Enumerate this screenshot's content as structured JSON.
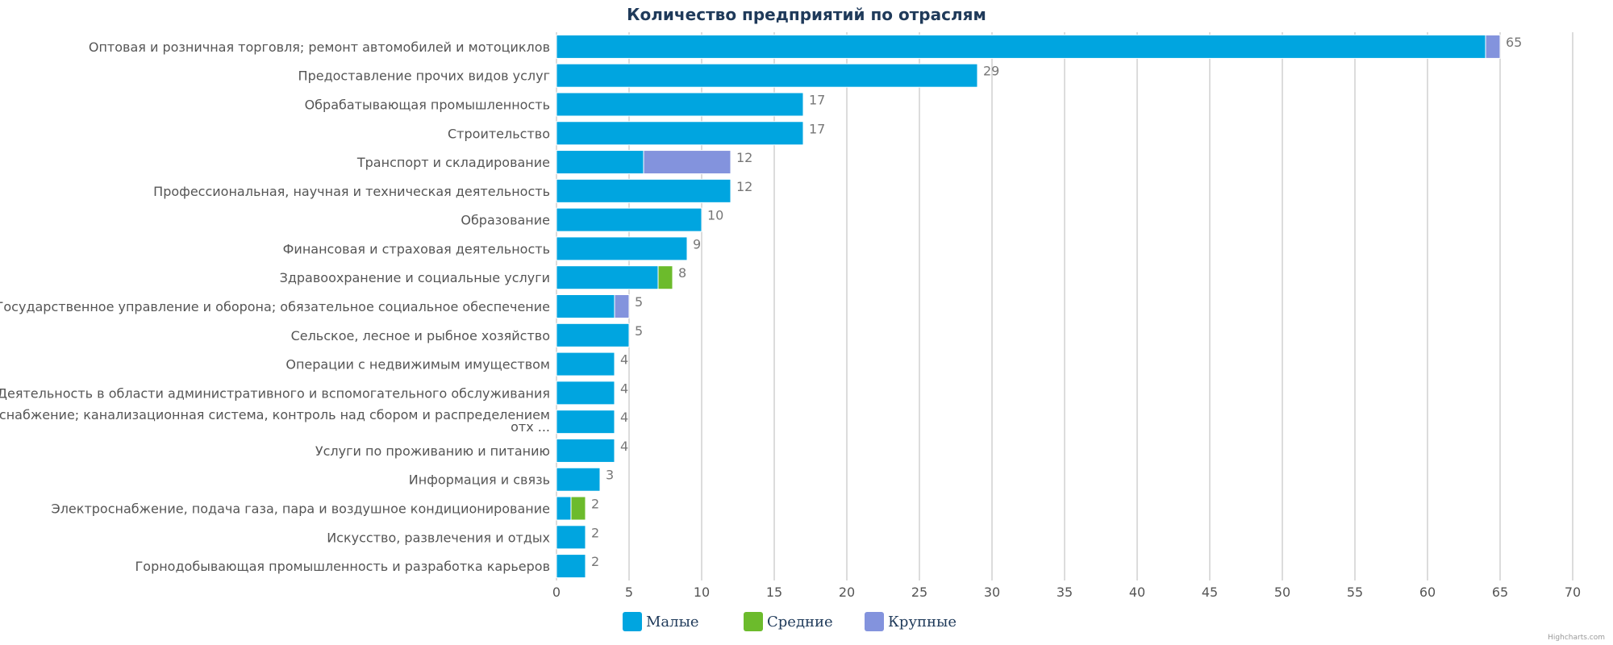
{
  "credits": "Highcharts.com",
  "chart_data": {
    "type": "bar",
    "orientation": "horizontal",
    "stacked": true,
    "title": "Количество предприятий по отраслям",
    "categories": [
      "Оптовая и розничная торговля; ремонт автомобилей и мотоциклов",
      "Предоставление прочих видов услуг",
      "Обрабатывающая промышленность",
      "Строительство",
      "Транспорт и складирование",
      "Профессиональная, научная и техническая деятельность",
      "Образование",
      "Финансовая и страховая деятельность",
      "Здравоохранение и социальные услуги",
      "Государственное управление и оборона; обязательное социальное обеспечение",
      "Сельское, лесное и рыбное хозяйство",
      "Операции с недвижимым имуществом",
      "Деятельность в области административного и вспомогательного обслуживания",
      [
        "Водоснабжение; канализационная система, контроль над сбором и распределением",
        "отх ..."
      ],
      "Услуги по проживанию и питанию",
      "Информация и связь",
      "Электроснабжение, подача газа, пара и воздушное кондиционирование",
      "Искусство, развлечения и отдых",
      "Горнодобывающая промышленность и разработка карьеров"
    ],
    "series": [
      {
        "name": "Малые",
        "color": "#00a5e0",
        "values": [
          64,
          29,
          17,
          17,
          6,
          12,
          10,
          9,
          7,
          4,
          5,
          4,
          4,
          4,
          4,
          3,
          1,
          2,
          2
        ]
      },
      {
        "name": "Средние",
        "color": "#6cbb2c",
        "values": [
          0,
          0,
          0,
          0,
          0,
          0,
          0,
          0,
          1,
          0,
          0,
          0,
          0,
          0,
          0,
          0,
          1,
          0,
          0
        ]
      },
      {
        "name": "Крупные",
        "color": "#8393dd",
        "values": [
          1,
          0,
          0,
          0,
          6,
          0,
          0,
          0,
          0,
          1,
          0,
          0,
          0,
          0,
          0,
          0,
          0,
          0,
          0
        ]
      }
    ],
    "totals": [
      65,
      29,
      17,
      17,
      12,
      12,
      10,
      9,
      8,
      5,
      5,
      4,
      4,
      4,
      4,
      3,
      2,
      2,
      2
    ],
    "xlim": [
      0,
      70
    ],
    "ticks": [
      0,
      5,
      10,
      15,
      20,
      25,
      30,
      35,
      40,
      45,
      50,
      55,
      60,
      65,
      70
    ],
    "grid": true,
    "legend_position": "bottom-center"
  }
}
